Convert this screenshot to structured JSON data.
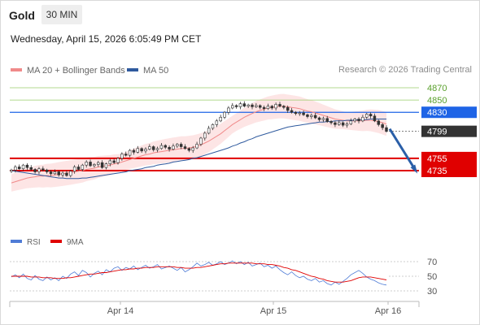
{
  "header": {
    "instrument": "Gold",
    "timeframe": "30 MIN",
    "datetime": "Wednesday, April 15, 2026 6:05:49 PM CET"
  },
  "legend": {
    "ma20_label": "MA 20 + Bollinger Bands",
    "ma50_label": "MA 50",
    "ma20_color": "#f08a8a",
    "ma50_color": "#2f5a9e",
    "credit": "Research © 2026 Trading Central"
  },
  "rsi_legend": {
    "rsi_label": "RSI",
    "ma9_label": "9MA",
    "rsi_color": "#4f7cd6",
    "ma9_color": "#e00000"
  },
  "chart_data": [
    {
      "type": "candlestick",
      "title": "",
      "xlabel": "",
      "ylabel": "",
      "ylim": [
        4685,
        4880
      ],
      "x_ticks": [
        "Apr 14",
        "Apr 15",
        "Apr 16"
      ],
      "y_ticks": [
        4870,
        4850
      ],
      "price_levels": [
        {
          "value": 4870,
          "label": "4870",
          "kind": "target",
          "color": "#9acd6a"
        },
        {
          "value": 4850,
          "label": "4850",
          "kind": "target",
          "color": "#9acd6a"
        },
        {
          "value": 4830,
          "label": "4830",
          "kind": "pivot",
          "color": "#1e64e6"
        },
        {
          "value": 4799,
          "label": "4799",
          "kind": "last-price",
          "color": "#333333"
        },
        {
          "value": 4755,
          "label": "4755",
          "kind": "support",
          "color": "#e00000"
        },
        {
          "value": 4735,
          "label": "4735",
          "kind": "support",
          "color": "#e00000"
        }
      ],
      "close_series": [
        4736,
        4741,
        4738,
        4744,
        4740,
        4737,
        4733,
        4738,
        4736,
        4733,
        4730,
        4733,
        4728,
        4731,
        4727,
        4734,
        4741,
        4737,
        4744,
        4749,
        4743,
        4745,
        4748,
        4740,
        4746,
        4751,
        4748,
        4755,
        4762,
        4760,
        4768,
        4765,
        4771,
        4767,
        4770,
        4774,
        4769,
        4771,
        4776,
        4773,
        4770,
        4775,
        4778,
        4774,
        4771,
        4768,
        4772,
        4778,
        4788,
        4796,
        4804,
        4810,
        4816,
        4822,
        4830,
        4837,
        4841,
        4839,
        4844,
        4840,
        4842,
        4839,
        4841,
        4838,
        4836,
        4840,
        4837,
        4843,
        4840,
        4838,
        4833,
        4830,
        4828,
        4829,
        4826,
        4823,
        4825,
        4821,
        4818,
        4820,
        4815,
        4813,
        4810,
        4813,
        4809,
        4811,
        4816,
        4819,
        4816,
        4822,
        4827,
        4824,
        4816,
        4810,
        4805,
        4799
      ],
      "ma20": [
        4715,
        4717,
        4719,
        4721,
        4723,
        4724,
        4725,
        4726,
        4726,
        4727,
        4727,
        4728,
        4729,
        4730,
        4731,
        4732,
        4733,
        4734,
        4735,
        4737,
        4738,
        4739,
        4741,
        4742,
        4743,
        4744,
        4746,
        4747,
        4749,
        4751,
        4753,
        4755,
        4757,
        4759,
        4761,
        4762,
        4764,
        4765,
        4766,
        4767,
        4768,
        4769,
        4770,
        4771,
        4771,
        4772,
        4773,
        4775,
        4777,
        4780,
        4783,
        4787,
        4791,
        4795,
        4800,
        4805,
        4810,
        4814,
        4818,
        4822,
        4825,
        4828,
        4831,
        4833,
        4835,
        4837,
        4838,
        4839,
        4840,
        4840,
        4839,
        4838,
        4837,
        4836,
        4834,
        4832,
        4831,
        4829,
        4827,
        4825,
        4823,
        4821,
        4819,
        4818,
        4817,
        4816,
        4816,
        4816,
        4816,
        4816,
        4817,
        4817,
        4816,
        4815,
        4813,
        4811
      ],
      "ma50": [
        4735,
        4734,
        4733,
        4732,
        4731,
        4730,
        4729,
        4728,
        4727,
        4726,
        4725,
        4724,
        4723,
        4723,
        4722,
        4722,
        4722,
        4722,
        4723,
        4723,
        4724,
        4725,
        4726,
        4727,
        4728,
        4729,
        4730,
        4731,
        4732,
        4733,
        4735,
        4736,
        4737,
        4738,
        4740,
        4741,
        4742,
        4744,
        4745,
        4746,
        4747,
        4749,
        4750,
        4751,
        4752,
        4753,
        4755,
        4756,
        4758,
        4760,
        4762,
        4764,
        4766,
        4768,
        4770,
        4772,
        4775,
        4777,
        4780,
        4782,
        4785,
        4787,
        4790,
        4792,
        4794,
        4796,
        4798,
        4800,
        4802,
        4804,
        4806,
        4807,
        4808,
        4809,
        4810,
        4811,
        4812,
        4813,
        4814,
        4814,
        4815,
        4815,
        4816,
        4816,
        4816,
        4817,
        4817,
        4817,
        4818,
        4818,
        4818,
        4819,
        4819,
        4819,
        4819,
        4819
      ]
    },
    {
      "type": "line",
      "title": "",
      "ylim": [
        20,
        80
      ],
      "y_ticks": [
        70,
        50,
        30
      ],
      "series": [
        {
          "name": "RSI",
          "values": [
            49,
            52,
            48,
            53,
            47,
            45,
            51,
            46,
            44,
            49,
            45,
            48,
            44,
            50,
            47,
            53,
            56,
            51,
            58,
            55,
            49,
            54,
            57,
            52,
            59,
            56,
            61,
            63,
            58,
            62,
            60,
            64,
            59,
            62,
            65,
            61,
            63,
            66,
            60,
            62,
            64,
            61,
            58,
            62,
            56,
            59,
            63,
            68,
            64,
            66,
            69,
            65,
            67,
            70,
            66,
            68,
            71,
            67,
            70,
            66,
            69,
            64,
            66,
            68,
            63,
            65,
            61,
            64,
            59,
            55,
            52,
            56,
            51,
            48,
            50,
            46,
            44,
            47,
            42,
            44,
            40,
            38,
            42,
            39,
            43,
            47,
            52,
            55,
            58,
            54,
            49,
            46,
            44,
            41,
            39,
            38
          ]
        },
        {
          "name": "9MA",
          "values": [
            50,
            50,
            50,
            50,
            50,
            49,
            49,
            49,
            48,
            48,
            48,
            47,
            47,
            47,
            48,
            48,
            49,
            50,
            51,
            52,
            53,
            53,
            54,
            55,
            55,
            56,
            57,
            58,
            59,
            59,
            60,
            60,
            61,
            61,
            62,
            62,
            62,
            63,
            63,
            63,
            63,
            63,
            62,
            62,
            61,
            61,
            61,
            62,
            62,
            63,
            64,
            65,
            66,
            67,
            67,
            68,
            68,
            68,
            68,
            68,
            68,
            68,
            67,
            67,
            67,
            66,
            66,
            65,
            64,
            62,
            61,
            59,
            58,
            56,
            54,
            52,
            50,
            49,
            47,
            46,
            44,
            43,
            42,
            42,
            42,
            43,
            44,
            46,
            48,
            49,
            49,
            49,
            48,
            47,
            46,
            45
          ]
        }
      ]
    }
  ]
}
